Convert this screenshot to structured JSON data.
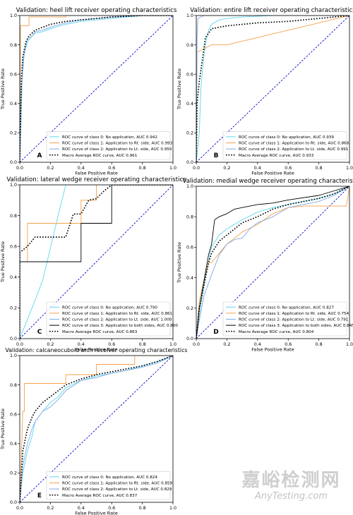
{
  "watermark": {
    "cn": "嘉峪检测网",
    "en": "AnyTesting.com"
  },
  "chart_data": [
    {
      "type": "line",
      "panel_letter": "A",
      "title": "Validation: heel lift receiver operating characteristics",
      "xlabel": "False Positive Rate",
      "ylabel": "True Positive Rate",
      "xlim": [
        0,
        1
      ],
      "ylim": [
        0,
        1
      ],
      "xticks": [
        "0.0",
        "0.2",
        "0.4",
        "0.6",
        "0.8",
        "1.0"
      ],
      "yticks": [
        "0.0",
        "0.2",
        "0.4",
        "0.6",
        "0.8",
        "1.0"
      ],
      "legend_position": "lower-right",
      "chance_line": {
        "x": [
          0,
          1
        ],
        "y": [
          0,
          1
        ],
        "color": "#0000cc"
      },
      "series": [
        {
          "name": "ROC curve of class 0: No application, AUC 0.942",
          "color": "#5bd8ee",
          "dash": "solid",
          "x": [
            0,
            0.01,
            0.02,
            0.05,
            0.08,
            0.1,
            0.15,
            0.2,
            0.3,
            0.4,
            0.5,
            0.6,
            0.7,
            0.8,
            1.0
          ],
          "y": [
            0,
            0.35,
            0.7,
            0.82,
            0.86,
            0.88,
            0.89,
            0.91,
            0.94,
            0.96,
            0.97,
            0.98,
            0.99,
            1.0,
            1.0
          ]
        },
        {
          "name": "ROC curve of class 1: Application to Rt. side, AUC 0.993",
          "color": "#f5a04a",
          "dash": "solid",
          "x": [
            0,
            0.005,
            0.06,
            0.06,
            0.3,
            0.3,
            1.0
          ],
          "y": [
            0,
            0.93,
            0.93,
            0.99,
            0.99,
            1.0,
            1.0
          ]
        },
        {
          "name": "ROC curve of class 2: Application to Lt. side, AUC 0.950",
          "color": "#7fa8e6",
          "dash": "solid",
          "x": [
            0,
            0.01,
            0.03,
            0.05,
            0.08,
            0.1,
            0.15,
            0.2,
            0.3,
            0.4,
            0.5,
            0.6,
            0.8,
            1.0
          ],
          "y": [
            0,
            0.5,
            0.75,
            0.84,
            0.86,
            0.89,
            0.9,
            0.92,
            0.95,
            0.97,
            0.98,
            0.99,
            1.0,
            1.0
          ]
        },
        {
          "name": "Macro Average ROC curve, AUC 0.961",
          "color": "#000000",
          "dash": "dotted",
          "x": [
            0,
            0.01,
            0.02,
            0.04,
            0.06,
            0.08,
            0.1,
            0.15,
            0.2,
            0.3,
            0.4,
            0.5,
            0.6,
            0.8,
            1.0
          ],
          "y": [
            0,
            0.55,
            0.72,
            0.82,
            0.86,
            0.88,
            0.9,
            0.92,
            0.94,
            0.96,
            0.97,
            0.98,
            0.99,
            1.0,
            1.0
          ]
        }
      ]
    },
    {
      "type": "line",
      "panel_letter": "B",
      "title": "Validation: entire lift receiver operating characteristics",
      "xlabel": "False Positive Rate",
      "ylabel": "True Positive Rate",
      "xlim": [
        0,
        1
      ],
      "ylim": [
        0,
        1
      ],
      "xticks": [
        "0.0",
        "0.2",
        "0.4",
        "0.6",
        "0.8",
        "1.0"
      ],
      "yticks": [
        "0.0",
        "0.2",
        "0.4",
        "0.6",
        "0.8",
        "1.0"
      ],
      "legend_position": "lower-right",
      "chance_line": {
        "x": [
          0,
          1
        ],
        "y": [
          0,
          1
        ],
        "color": "#0000cc"
      },
      "series": [
        {
          "name": "ROC curve of class 0: No application, AUC 0.939",
          "color": "#5bd8ee",
          "dash": "solid",
          "x": [
            0,
            0.02,
            0.03,
            0.04,
            0.05,
            0.06,
            0.08,
            0.1,
            0.15,
            0.2,
            0.3,
            0.5,
            0.7,
            1.0
          ],
          "y": [
            0,
            0.2,
            0.5,
            0.62,
            0.72,
            0.8,
            0.9,
            0.94,
            0.97,
            0.98,
            0.99,
            1.0,
            1.0,
            1.0
          ]
        },
        {
          "name": "ROC curve of class 1: Application to Rt. side, AUC 0.868",
          "color": "#f5a04a",
          "dash": "solid",
          "x": [
            0,
            0.005,
            0.1,
            0.2,
            0.4,
            0.6,
            0.8,
            1.0
          ],
          "y": [
            0,
            0.75,
            0.8,
            0.8,
            0.85,
            0.9,
            0.95,
            1.0
          ]
        },
        {
          "name": "ROC curve of class 2: Application to Lt. side, AUC 0.991",
          "color": "#7fa8e6",
          "dash": "solid",
          "x": [
            0,
            0.005,
            0.01,
            0.03,
            0.05,
            0.1,
            0.2,
            0.4,
            0.6,
            1.0
          ],
          "y": [
            0,
            0.85,
            0.98,
            0.99,
            1.0,
            1.0,
            1.0,
            1.0,
            1.0,
            1.0
          ]
        },
        {
          "name": "Macro Average ROC curve, AUC 0.933",
          "color": "#000000",
          "dash": "dotted",
          "x": [
            0,
            0.005,
            0.02,
            0.04,
            0.06,
            0.08,
            0.1,
            0.15,
            0.2,
            0.3,
            0.4,
            0.6,
            0.8,
            1.0
          ],
          "y": [
            0,
            0.4,
            0.55,
            0.7,
            0.85,
            0.88,
            0.91,
            0.92,
            0.93,
            0.94,
            0.95,
            0.96,
            0.98,
            1.0
          ]
        }
      ]
    },
    {
      "type": "line",
      "panel_letter": "C",
      "title": "Validation: lateral wedge receiver operating characteristics",
      "xlabel": "False Positive Rate",
      "ylabel": "True Positive Rate",
      "xlim": [
        0,
        1
      ],
      "ylim": [
        0,
        1
      ],
      "xticks": [
        "0.0",
        "0.2",
        "0.4",
        "0.6",
        "0.8",
        "1.0"
      ],
      "yticks": [
        "0.0",
        "0.2",
        "0.4",
        "0.6",
        "0.8",
        "1.0"
      ],
      "legend_position": "lower-right",
      "chance_line": {
        "x": [
          0,
          1
        ],
        "y": [
          0,
          1
        ],
        "color": "#0000cc"
      },
      "series": [
        {
          "name": "ROC curve of class 0: No application, AUC 0.790",
          "color": "#5bd8ee",
          "dash": "solid",
          "x": [
            0,
            0.1,
            0.15,
            0.15,
            0.25,
            0.3,
            0.3,
            1.0
          ],
          "y": [
            0,
            0.25,
            0.38,
            0.38,
            0.8,
            1.0,
            1.0,
            1.0
          ]
        },
        {
          "name": "ROC curve of class 1: Application to Rt. side, AUC 0.861",
          "color": "#f5a04a",
          "dash": "solid",
          "x": [
            0,
            0,
            0.05,
            0.05,
            0.4,
            0.4,
            0.5,
            0.5,
            1.0
          ],
          "y": [
            0,
            0.5,
            0.5,
            0.75,
            0.75,
            0.9,
            0.9,
            1.0,
            1.0
          ]
        },
        {
          "name": "ROC curve of class 2: Application to Lt. side, AUC 1.000",
          "color": "#7fa8e6",
          "dash": "solid",
          "x": [
            0,
            0,
            1.0
          ],
          "y": [
            0,
            1.0,
            1.0
          ]
        },
        {
          "name": "ROC curve of class 3: Application to both sides, AUC 0.800",
          "color": "#000000",
          "dash": "solid",
          "x": [
            0,
            0,
            0.4,
            0.4,
            0.6,
            0.6,
            1.0
          ],
          "y": [
            0,
            0.5,
            0.5,
            0.75,
            0.75,
            1.0,
            1.0
          ]
        },
        {
          "name": "Macro Average ROC curve, AUC 0.863",
          "color": "#000000",
          "dash": "dotted",
          "x": [
            0,
            0,
            0.05,
            0.1,
            0.2,
            0.3,
            0.35,
            0.4,
            0.45,
            0.5,
            0.55,
            0.6,
            1.0
          ],
          "y": [
            0,
            0.56,
            0.6,
            0.66,
            0.66,
            0.66,
            0.81,
            0.81,
            0.9,
            0.91,
            0.96,
            1.0,
            1.0
          ]
        }
      ]
    },
    {
      "type": "line",
      "panel_letter": "D",
      "title": "Validation: medial wedge receiver operating characteristics",
      "xlabel": "False Positive Rate",
      "ylabel": "True Positive Rate",
      "xlim": [
        0,
        1
      ],
      "ylim": [
        0,
        1
      ],
      "xticks": [
        "0.0",
        "0.2",
        "0.4",
        "0.6",
        "0.8",
        "1.0"
      ],
      "yticks": [
        "0.0",
        "0.2",
        "0.4",
        "0.6",
        "0.8",
        "1.0"
      ],
      "legend_position": "lower-right",
      "chance_line": {
        "x": [
          0,
          1
        ],
        "y": [
          0,
          1
        ],
        "color": "#0000cc"
      },
      "series": [
        {
          "name": "ROC curve of class 0: No application, AUC 0.827",
          "color": "#5bd8ee",
          "dash": "solid",
          "x": [
            0,
            0.02,
            0.05,
            0.08,
            0.1,
            0.15,
            0.2,
            0.25,
            0.3,
            0.4,
            0.5,
            0.6,
            0.7,
            0.8,
            0.9,
            1.0
          ],
          "y": [
            0,
            0.15,
            0.35,
            0.5,
            0.6,
            0.68,
            0.72,
            0.75,
            0.78,
            0.83,
            0.86,
            0.88,
            0.9,
            0.92,
            0.95,
            1.0
          ]
        },
        {
          "name": "ROC curve of class 1: Application to Rt. side, AUC 0.754",
          "color": "#f5a04a",
          "dash": "solid",
          "x": [
            0,
            0.02,
            0.05,
            0.08,
            0.1,
            0.15,
            0.2,
            0.3,
            0.4,
            0.5,
            0.6,
            0.7,
            0.88,
            0.88,
            0.98,
            1.0
          ],
          "y": [
            0,
            0.25,
            0.38,
            0.5,
            0.5,
            0.56,
            0.62,
            0.7,
            0.75,
            0.82,
            0.86,
            0.87,
            0.87,
            0.87,
            0.87,
            1.0
          ]
        },
        {
          "name": "ROC curve of class 2: Application to Lt. side, AUC 0.791",
          "color": "#7fa8e6",
          "dash": "solid",
          "x": [
            0,
            0.02,
            0.05,
            0.1,
            0.15,
            0.2,
            0.25,
            0.3,
            0.35,
            0.4,
            0.5,
            0.6,
            0.7,
            0.8,
            0.9,
            1.0
          ],
          "y": [
            0,
            0.12,
            0.28,
            0.42,
            0.55,
            0.62,
            0.65,
            0.66,
            0.72,
            0.76,
            0.8,
            0.86,
            0.88,
            0.9,
            0.94,
            1.0
          ]
        },
        {
          "name": "ROC curve of class 3: Application to both sides, AUC 0.845",
          "color": "#000000",
          "dash": "solid",
          "x": [
            0,
            0.02,
            0.05,
            0.08,
            0.1,
            0.12,
            0.15,
            0.2,
            0.25,
            0.3,
            0.4,
            0.5,
            0.6,
            0.8,
            0.9,
            1.0
          ],
          "y": [
            0,
            0.2,
            0.38,
            0.55,
            0.62,
            0.78,
            0.8,
            0.82,
            0.85,
            0.86,
            0.88,
            0.89,
            0.91,
            0.94,
            0.97,
            1.0
          ]
        },
        {
          "name": "Macro Average ROC curve, AUC 0.804",
          "color": "#000000",
          "dash": "dotted",
          "x": [
            0,
            0.02,
            0.05,
            0.08,
            0.1,
            0.15,
            0.2,
            0.25,
            0.3,
            0.4,
            0.5,
            0.6,
            0.7,
            0.8,
            0.9,
            1.0
          ],
          "y": [
            0,
            0.2,
            0.35,
            0.5,
            0.56,
            0.64,
            0.68,
            0.72,
            0.76,
            0.8,
            0.85,
            0.88,
            0.9,
            0.92,
            0.95,
            1.0
          ]
        }
      ]
    },
    {
      "type": "line",
      "panel_letter": "E",
      "title": "Validation: calcaneocuboid arch receiver operating characteristics",
      "xlabel": "False Positive Rate",
      "ylabel": "True Positive Rate",
      "xlim": [
        0,
        1
      ],
      "ylim": [
        0,
        1
      ],
      "xticks": [
        "0.0",
        "0.2",
        "0.4",
        "0.6",
        "0.8",
        "1.0"
      ],
      "yticks": [
        "0.0",
        "0.2",
        "0.4",
        "0.6",
        "0.8",
        "1.0"
      ],
      "legend_position": "lower-right",
      "chance_line": {
        "x": [
          0,
          1
        ],
        "y": [
          0,
          1
        ],
        "color": "#0000cc"
      },
      "series": [
        {
          "name": "ROC curve of class 0: No application, AUC 0.824",
          "color": "#5bd8ee",
          "dash": "solid",
          "x": [
            0,
            0.02,
            0.05,
            0.08,
            0.1,
            0.15,
            0.2,
            0.25,
            0.3,
            0.4,
            0.5,
            0.6,
            0.7,
            0.8,
            0.9,
            1.0
          ],
          "y": [
            0,
            0.2,
            0.35,
            0.45,
            0.55,
            0.62,
            0.68,
            0.72,
            0.78,
            0.83,
            0.86,
            0.88,
            0.9,
            0.93,
            0.96,
            1.0
          ]
        },
        {
          "name": "ROC curve of class 1: Application to Rt. side, AUC 0.859",
          "color": "#f5a04a",
          "dash": "solid",
          "x": [
            0,
            0.01,
            0.02,
            0.03,
            0.03,
            0.3,
            0.3,
            0.5,
            0.5,
            0.75,
            0.75,
            1.0
          ],
          "y": [
            0,
            0.3,
            0.62,
            0.62,
            0.81,
            0.81,
            0.87,
            0.87,
            0.94,
            0.94,
            1.0,
            1.0
          ]
        },
        {
          "name": "ROC curve of class 2: Application to Lt. side, AUC 0.829",
          "color": "#7fa8e6",
          "dash": "solid",
          "x": [
            0,
            0.02,
            0.05,
            0.08,
            0.1,
            0.15,
            0.2,
            0.25,
            0.3,
            0.4,
            0.5,
            0.6,
            0.7,
            0.8,
            0.9,
            1.0
          ],
          "y": [
            0,
            0.25,
            0.4,
            0.5,
            0.55,
            0.62,
            0.65,
            0.7,
            0.76,
            0.83,
            0.85,
            0.88,
            0.9,
            0.92,
            0.95,
            1.0
          ]
        },
        {
          "name": "Macro Average ROC curve, AUC 0.837",
          "color": "#000000",
          "dash": "dotted",
          "x": [
            0,
            0.02,
            0.05,
            0.08,
            0.1,
            0.15,
            0.2,
            0.25,
            0.3,
            0.4,
            0.5,
            0.6,
            0.7,
            0.8,
            0.9,
            1.0
          ],
          "y": [
            0,
            0.35,
            0.5,
            0.58,
            0.62,
            0.68,
            0.72,
            0.76,
            0.8,
            0.84,
            0.87,
            0.89,
            0.91,
            0.93,
            0.96,
            1.0
          ]
        }
      ]
    }
  ]
}
